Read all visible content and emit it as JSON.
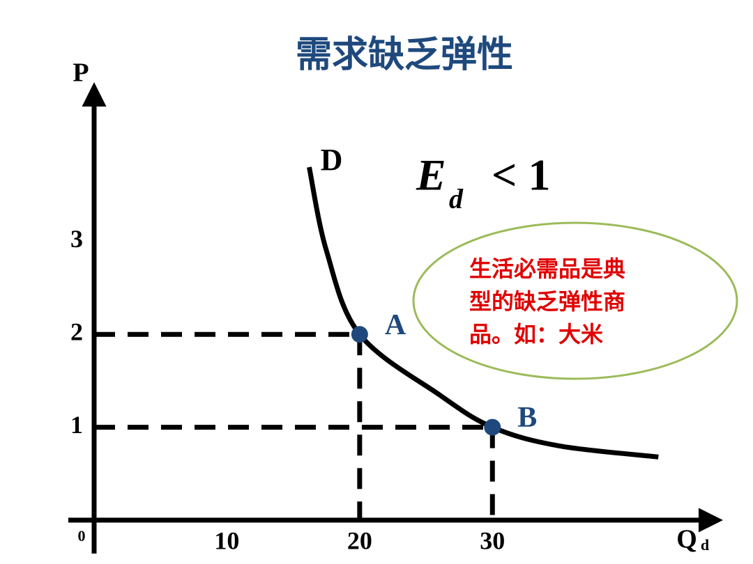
{
  "chart_data": {
    "type": "line",
    "title": "需求缺乏弹性",
    "y_label": "P",
    "x_label": "Q",
    "x_label_subscript": "d",
    "origin_label": "0",
    "xlim": [
      0,
      47
    ],
    "ylim": [
      0,
      4.7
    ],
    "xticks": [
      10,
      20,
      30
    ],
    "yticks": [
      1,
      2,
      3
    ],
    "series": [
      {
        "name": "D",
        "color": "#000000",
        "x": [
          16.2,
          17.5,
          20,
          26,
          30,
          35,
          42.5
        ],
        "values": [
          3.8,
          2.9,
          2,
          1.35,
          1,
          0.8,
          0.68
        ]
      }
    ],
    "points": [
      {
        "name": "A",
        "x": 20,
        "y": 2,
        "color": "#1f497d"
      },
      {
        "name": "B",
        "x": 30,
        "y": 1,
        "color": "#1f497d"
      }
    ],
    "formula": {
      "symbol": "E",
      "subscript": "d",
      "relation": "< 1"
    },
    "note": {
      "lines": [
        "生活必需品是典",
        "型的缺乏弹性商",
        "品。如：大米"
      ],
      "color": "#e00000",
      "border": "#9bbb59"
    }
  }
}
